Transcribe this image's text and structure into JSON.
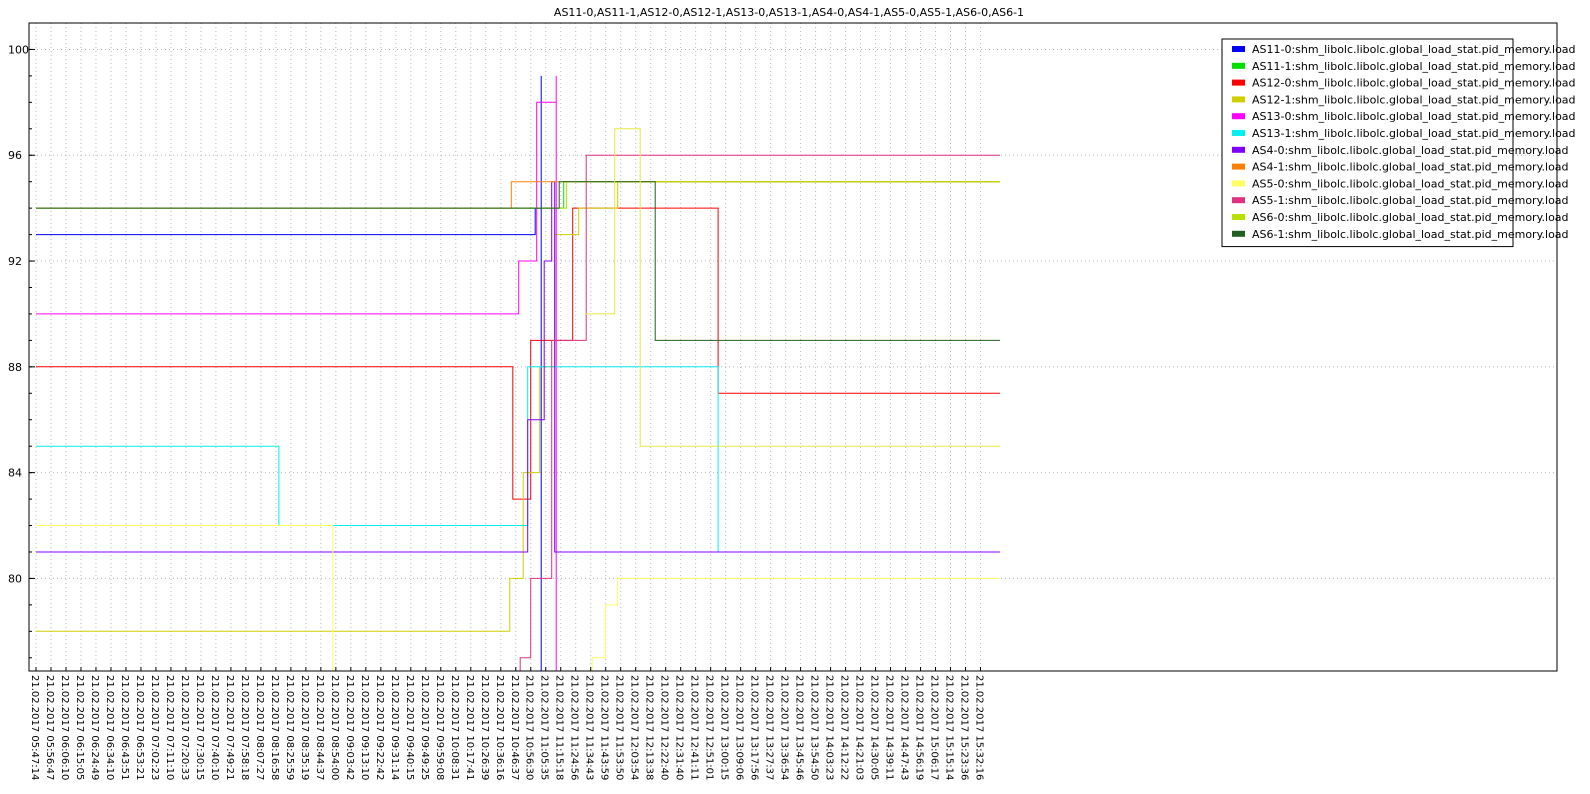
{
  "chart_data": {
    "type": "line",
    "title": "AS11-0,AS11-1,AS12-0,AS12-1,AS13-0,AS13-1,AS4-0,AS4-1,AS5-0,AS5-1,AS6-0,AS6-1",
    "xlabel": "",
    "ylabel": "",
    "ylim": [
      76.5,
      101
    ],
    "yticks": [
      80,
      84,
      88,
      92,
      96,
      100
    ],
    "grid": true,
    "legend_position": "top-right",
    "x_tick_labels": [
      "21.02.2017 05:47:14",
      "21.02.2017 05:56:47",
      "21.02.2017 06:06:10",
      "21.02.2017 06:15:05",
      "21.02.2017 06:24:49",
      "21.02.2017 06:34:10",
      "21.02.2017 06:43:51",
      "21.02.2017 06:53:21",
      "21.02.2017 07:02:23",
      "21.02.2017 07:11:10",
      "21.02.2017 07:20:33",
      "21.02.2017 07:30:15",
      "21.02.2017 07:40:10",
      "21.02.2017 07:49:21",
      "21.02.2017 07:58:18",
      "21.02.2017 08:07:27",
      "21.02.2017 08:16:58",
      "21.02.2017 08:25:59",
      "21.02.2017 08:35:19",
      "21.02.2017 08:44:37",
      "21.02.2017 08:54:00",
      "21.02.2017 09:03:42",
      "21.02.2017 09:13:10",
      "21.02.2017 09:22:42",
      "21.02.2017 09:31:14",
      "21.02.2017 09:40:15",
      "21.02.2017 09:49:25",
      "21.02.2017 09:59:08",
      "21.02.2017 10:08:31",
      "21.02.2017 10:17:41",
      "21.02.2017 10:26:39",
      "21.02.2017 10:36:16",
      "21.02.2017 10:46:37",
      "21.02.2017 10:56:30",
      "21.02.2017 11:05:35",
      "21.02.2017 11:15:18",
      "21.02.2017 11:24:56",
      "21.02.2017 11:34:43",
      "21.02.2017 11:43:59",
      "21.02.2017 11:53:50",
      "21.02.2017 12:03:54",
      "21.02.2017 12:13:38",
      "21.02.2017 12:22:40",
      "21.02.2017 12:31:40",
      "21.02.2017 12:41:11",
      "21.02.2017 12:51:01",
      "21.02.2017 13:00:15",
      "21.02.2017 13:09:06",
      "21.02.2017 13:17:56",
      "21.02.2017 13:27:37",
      "21.02.2017 13:36:54",
      "21.02.2017 13:45:46",
      "21.02.2017 13:54:50",
      "21.02.2017 14:03:23",
      "21.02.2017 14:12:22",
      "21.02.2017 14:21:03",
      "21.02.2017 14:30:05",
      "21.02.2017 14:39:11",
      "21.02.2017 14:47:43",
      "21.02.2017 14:56:19",
      "21.02.2017 15:06:17",
      "21.02.2017 15:15:14",
      "21.02.2017 15:23:36",
      "21.02.2017 15:32:16"
    ],
    "x_range": [
      0,
      64.3
    ],
    "series": [
      {
        "name": "AS11-0:shm_libolc.libolc.global_load_stat.pid_memory.load",
        "color": "#0000ff",
        "points": [
          [
            0,
            93
          ],
          [
            33.3,
            93
          ],
          [
            33.3,
            94
          ],
          [
            33.7,
            94
          ],
          [
            33.7,
            99
          ],
          [
            33.7,
            76.5
          ]
        ]
      },
      {
        "name": "AS11-1:shm_libolc.libolc.global_load_stat.pid_memory.load",
        "color": "#00e000",
        "points": [
          [
            0,
            94
          ],
          [
            35.2,
            94
          ],
          [
            35.2,
            95
          ],
          [
            64.3,
            95
          ]
        ]
      },
      {
        "name": "AS12-0:shm_libolc.libolc.global_load_stat.pid_memory.load",
        "color": "#ff0000",
        "points": [
          [
            0,
            88
          ],
          [
            31.8,
            88
          ],
          [
            31.8,
            83
          ],
          [
            33,
            83
          ],
          [
            33,
            89
          ],
          [
            35.8,
            89
          ],
          [
            35.8,
            94
          ],
          [
            45.5,
            94
          ],
          [
            45.5,
            87
          ],
          [
            64.3,
            87
          ]
        ]
      },
      {
        "name": "AS12-1:shm_libolc.libolc.global_load_stat.pid_memory.load",
        "color": "#d0d000",
        "points": [
          [
            0,
            78
          ],
          [
            31.6,
            78
          ],
          [
            31.6,
            80
          ],
          [
            32.5,
            80
          ],
          [
            32.5,
            84
          ],
          [
            33.6,
            84
          ],
          [
            33.6,
            88
          ],
          [
            34.6,
            88
          ],
          [
            34.6,
            93
          ],
          [
            36.2,
            93
          ],
          [
            36.2,
            94
          ],
          [
            38.8,
            94
          ],
          [
            38.8,
            95
          ],
          [
            64.3,
            95
          ]
        ]
      },
      {
        "name": "AS13-0:shm_libolc.libolc.global_load_stat.pid_memory.load",
        "color": "#ff00ff",
        "points": [
          [
            0,
            90
          ],
          [
            32.2,
            90
          ],
          [
            32.2,
            92
          ],
          [
            33.4,
            92
          ],
          [
            33.4,
            98
          ],
          [
            34.7,
            98
          ],
          [
            34.7,
            99
          ],
          [
            34.7,
            76.5
          ]
        ]
      },
      {
        "name": "AS13-1:shm_libolc.libolc.global_load_stat.pid_memory.load",
        "color": "#00f0f0",
        "points": [
          [
            0,
            85
          ],
          [
            16.2,
            85
          ],
          [
            16.2,
            82
          ],
          [
            32.8,
            82
          ],
          [
            32.8,
            88
          ],
          [
            45.5,
            88
          ],
          [
            45.5,
            81
          ],
          [
            64.3,
            81
          ]
        ]
      },
      {
        "name": "AS4-0:shm_libolc.libolc.global_load_stat.pid_memory.load",
        "color": "#8000ff",
        "points": [
          [
            0,
            81
          ],
          [
            32.8,
            81
          ],
          [
            32.8,
            86
          ],
          [
            33.9,
            86
          ],
          [
            33.9,
            92
          ],
          [
            34.4,
            92
          ],
          [
            34.4,
            95
          ],
          [
            34.6,
            95
          ],
          [
            34.6,
            81
          ],
          [
            64.3,
            81
          ]
        ]
      },
      {
        "name": "AS4-1:shm_libolc.libolc.global_load_stat.pid_memory.load",
        "color": "#ff8000",
        "points": [
          [
            0,
            94
          ],
          [
            31.7,
            94
          ],
          [
            31.7,
            95
          ],
          [
            64.3,
            95
          ]
        ]
      },
      {
        "name": "AS5-0:shm_libolc.libolc.global_load_stat.pid_memory.load",
        "color": "#ffff60",
        "points": [
          [
            0,
            82
          ],
          [
            19.8,
            82
          ],
          [
            19.8,
            76.5
          ],
          [
            37.1,
            76.5
          ],
          [
            37.1,
            77
          ],
          [
            38,
            77
          ],
          [
            38,
            79
          ],
          [
            38.8,
            79
          ],
          [
            38.8,
            80
          ],
          [
            64.3,
            80
          ]
        ]
      },
      {
        "name": "AS5-1:shm_libolc.libolc.global_load_stat.pid_memory.load",
        "color": "#e03080",
        "points": [
          [
            0,
            76.5
          ],
          [
            32.3,
            76.5
          ],
          [
            32.3,
            77
          ],
          [
            33,
            77
          ],
          [
            33,
            80
          ],
          [
            34.4,
            80
          ],
          [
            34.4,
            89
          ],
          [
            36.7,
            89
          ],
          [
            36.7,
            96
          ],
          [
            64.3,
            96
          ]
        ]
      },
      {
        "name": "AS6-0:shm_libolc.libolc.global_load_stat.pid_memory.load",
        "color": "#b8e000",
        "points": [
          [
            0,
            94
          ],
          [
            35.4,
            94
          ],
          [
            35.4,
            95
          ],
          [
            64.3,
            95
          ]
        ]
      },
      {
        "name": "AS6-1:shm_libolc.libolc.global_load_stat.pid_memory.load",
        "color": "#206020",
        "points": [
          [
            0,
            94
          ],
          [
            34.9,
            94
          ],
          [
            34.9,
            95
          ],
          [
            41.3,
            95
          ],
          [
            41.3,
            89
          ],
          [
            64.3,
            89
          ]
        ]
      },
      {
        "name": "",
        "color": "#e8e840",
        "points": [
          [
            36.6,
            90
          ],
          [
            38.6,
            90
          ],
          [
            38.6,
            97
          ],
          [
            40.3,
            97
          ],
          [
            40.3,
            85
          ],
          [
            64.3,
            85
          ]
        ]
      }
    ]
  }
}
